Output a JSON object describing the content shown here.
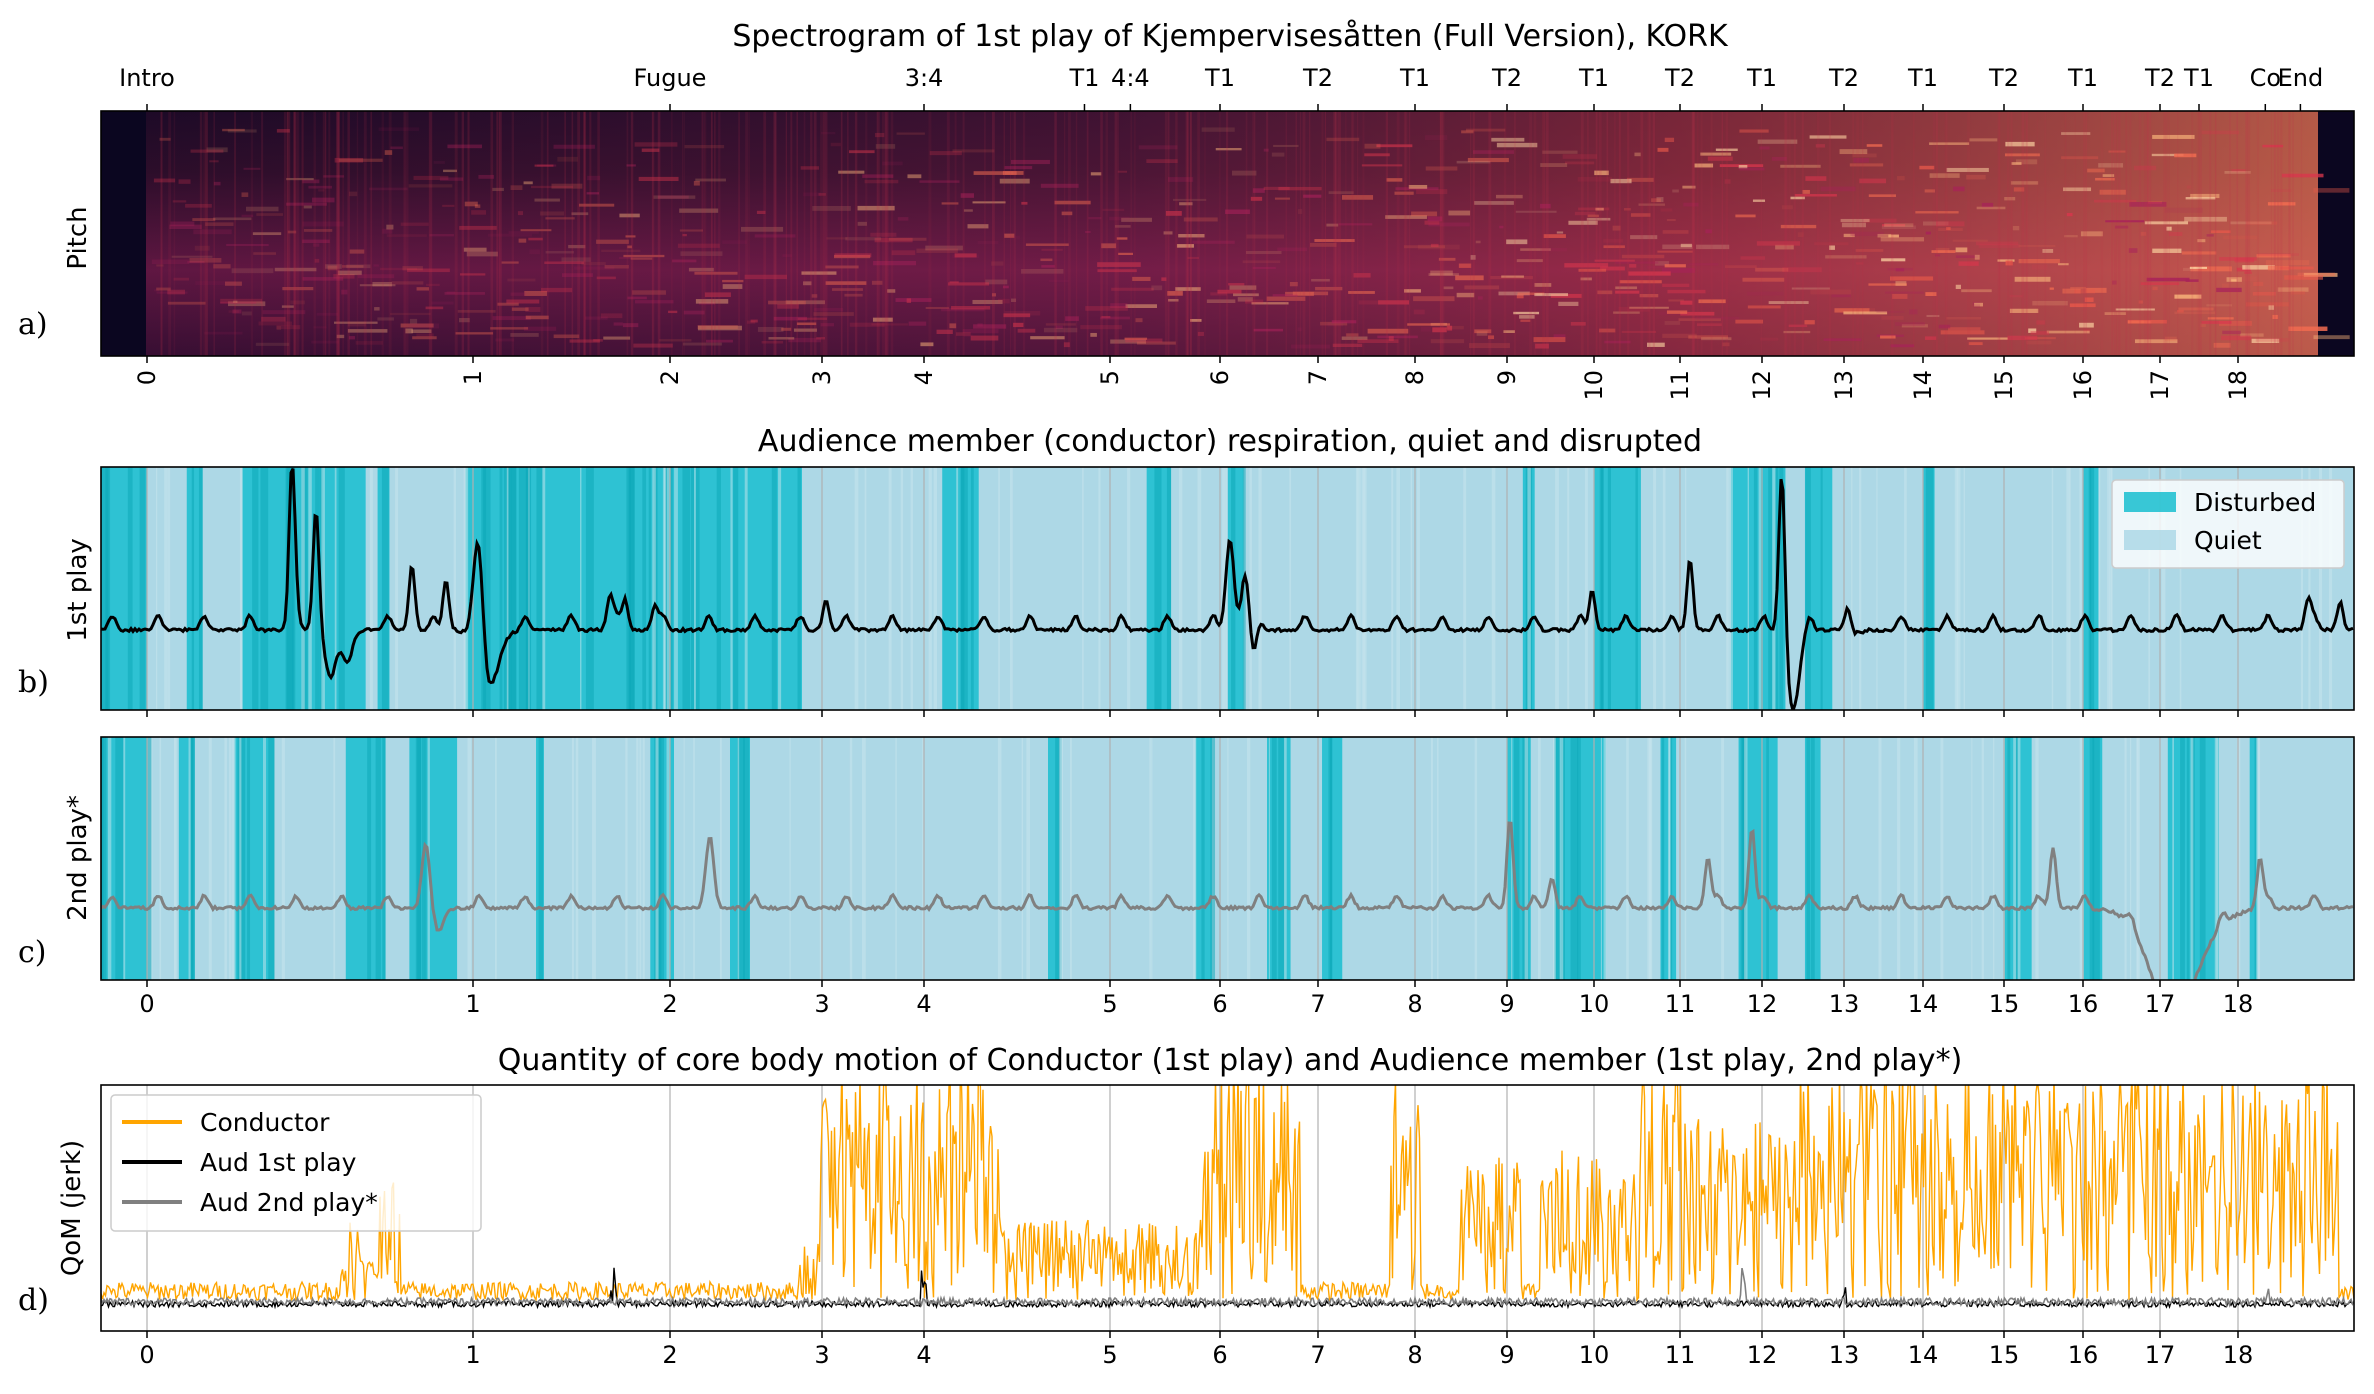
{
  "figure": {
    "titles": {
      "a": "Spectrogram of 1st play of Kjempervisesåtten (Full Version), KORK",
      "b": "Audience member (conductor) respiration, quiet and disrupted",
      "d": "Quantity of core body motion of Conductor (1st play) and Audience member (1st play, 2nd play*)"
    },
    "ylabels": {
      "a": "Pitch",
      "b": "1st play",
      "c": "2nd play*",
      "d": "QoM (jerk)"
    },
    "panel_letters": [
      "a)",
      "b)",
      "c)",
      "d)"
    ],
    "colors": {
      "disturbed": "#17becf",
      "quiet": "#add8e6",
      "conductor": "#ffa500",
      "aud1": "#000000",
      "aud2": "#808080"
    }
  },
  "chart_data": [
    {
      "type": "heatmap",
      "panel": "a",
      "title": "Spectrogram of 1st play of Kjempervisesåtten (Full Version), KORK",
      "ylabel": "Pitch",
      "xlim": [
        -0.4,
        19.1
      ],
      "ticks": [
        0,
        1,
        2,
        3,
        4,
        5,
        6,
        7,
        8,
        9,
        10,
        11,
        12,
        13,
        14,
        15,
        16,
        17,
        18
      ],
      "tick_positions": [
        0,
        0.82,
        1.32,
        1.7,
        1.96,
        2.47,
        2.74,
        2.99,
        3.23,
        3.46,
        3.68,
        3.9,
        4.11,
        4.32,
        4.52,
        4.73,
        4.93,
        5.13,
        5.33
      ],
      "section_labels": [
        {
          "label": "Intro",
          "pos": 0
        },
        {
          "label": "Fugue",
          "pos": 1.32
        },
        {
          "label": "3:4",
          "pos": 1.96
        },
        {
          "label": "T1",
          "pos": 2.4
        },
        {
          "label": "4:4",
          "pos": 2.52
        },
        {
          "label": "T1",
          "pos": 2.74
        },
        {
          "label": "T2",
          "pos": 2.99
        },
        {
          "label": "T1",
          "pos": 3.23
        },
        {
          "label": "T2",
          "pos": 3.46
        },
        {
          "label": "T1",
          "pos": 3.68
        },
        {
          "label": "T2",
          "pos": 3.9
        },
        {
          "label": "T1",
          "pos": 4.11
        },
        {
          "label": "T2",
          "pos": 4.32
        },
        {
          "label": "T1",
          "pos": 4.52
        },
        {
          "label": "T2",
          "pos": 4.73
        },
        {
          "label": "T1",
          "pos": 4.93
        },
        {
          "label": "T2",
          "pos": 5.13
        },
        {
          "label": "T1",
          "pos": 5.23
        },
        {
          "label": "Co",
          "pos": 5.4
        },
        {
          "label": "End",
          "pos": 5.49
        }
      ]
    },
    {
      "type": "area",
      "panel": "b",
      "title": "Audience member (conductor) respiration, quiet and disrupted",
      "ylabel": "1st play",
      "legend": {
        "position": "top-right",
        "entries": [
          "Disturbed",
          "Quiet"
        ]
      },
      "disturbed_intervals": [
        [
          -0.12,
          0.0
        ],
        [
          0.1,
          0.14
        ],
        [
          0.24,
          0.55
        ],
        [
          0.58,
          0.61
        ],
        [
          0.8,
          1.65
        ],
        [
          2.01,
          2.11
        ],
        [
          2.56,
          2.62
        ],
        [
          2.76,
          2.8
        ],
        [
          3.5,
          3.53
        ],
        [
          3.68,
          3.8
        ],
        [
          4.03,
          4.17
        ],
        [
          4.22,
          4.29
        ],
        [
          4.52,
          4.55
        ],
        [
          4.93,
          4.97
        ]
      ],
      "tick_positions": [
        0,
        0.82,
        1.32,
        1.7,
        1.96,
        2.47,
        2.74,
        2.99,
        3.23,
        3.46,
        3.68,
        3.9,
        4.11,
        4.32,
        4.52,
        4.73,
        4.93,
        5.13,
        5.33
      ]
    },
    {
      "type": "area",
      "panel": "c",
      "ylabel": "2nd play*",
      "disturbed_intervals": [
        [
          -0.12,
          0.0
        ],
        [
          0.08,
          0.12
        ],
        [
          0.22,
          0.32
        ],
        [
          0.5,
          0.6
        ],
        [
          0.66,
          0.78
        ],
        [
          0.98,
          1.0
        ],
        [
          1.27,
          1.33
        ],
        [
          1.47,
          1.52
        ],
        [
          2.3,
          2.33
        ],
        [
          2.68,
          2.72
        ],
        [
          2.86,
          2.92
        ],
        [
          3.0,
          3.05
        ],
        [
          3.46,
          3.52
        ],
        [
          3.58,
          3.71
        ],
        [
          3.85,
          3.89
        ],
        [
          4.05,
          4.15
        ],
        [
          4.22,
          4.26
        ],
        [
          4.73,
          4.8
        ],
        [
          4.93,
          4.98
        ],
        [
          5.15,
          5.28
        ],
        [
          5.36,
          5.38
        ]
      ],
      "tick_positions": [
        0,
        0.82,
        1.32,
        1.7,
        1.96,
        2.47,
        2.74,
        2.99,
        3.23,
        3.46,
        3.68,
        3.9,
        4.11,
        4.32,
        4.52,
        4.73,
        4.93,
        5.13,
        5.33
      ]
    },
    {
      "type": "line",
      "panel": "d",
      "title": "Quantity of core body motion of Conductor (1st play) and Audience member (1st play, 2nd play*)",
      "ylabel": "QoM (jerk)",
      "legend": {
        "position": "top-left"
      },
      "series": [
        {
          "name": "Conductor",
          "color": "#ffa500"
        },
        {
          "name": "Aud 1st play",
          "color": "#000000"
        },
        {
          "name": "Aud 2nd play*",
          "color": "#808080"
        }
      ],
      "tick_positions": [
        0,
        0.82,
        1.32,
        1.7,
        1.96,
        2.47,
        2.74,
        2.99,
        3.23,
        3.46,
        3.68,
        3.9,
        4.11,
        4.32,
        4.52,
        4.73,
        4.93,
        5.13,
        5.33
      ]
    }
  ]
}
